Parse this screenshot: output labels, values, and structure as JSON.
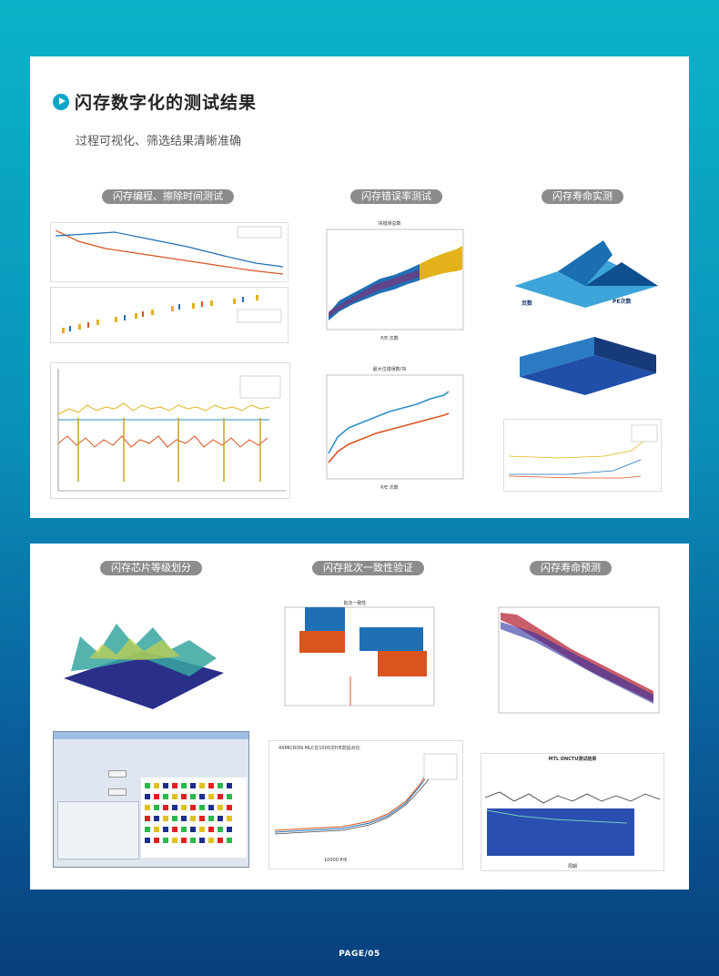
{
  "header": {
    "title": "闪存数字化的测试结果",
    "subtitle": "过程可视化、筛选结果清晰准确"
  },
  "section1": {
    "labels": [
      "闪存编程、擦除时间测试",
      "闪存错误率测试",
      "闪存寿命实测"
    ]
  },
  "section2": {
    "labels": [
      "闪存芯片等级划分",
      "闪存批次一致性验证",
      "闪存寿命预测"
    ]
  },
  "figures": {
    "error_rate_title": "块错误总数",
    "error_rate_xlabel": "P/E 次数",
    "max_error_title": "最大位错误数/块",
    "max_error_xlabel": "P/E 次数",
    "life_3d_labels": [
      "页数",
      "PE次数"
    ],
    "lot_title": "批次一致性",
    "vlc_title": "4XMICRON MLC在1000次P/E前后对比",
    "vlc_xlabel": "10000 P/E",
    "ldpc_title": "MTL DNCTU测试结果",
    "ldpc_xlabel": "周期"
  },
  "colors": {
    "accent": "#0aa6c6",
    "pill": "#8c8c8c",
    "blue": "#1f6fb5",
    "orange": "#d9541e",
    "gold": "#e3b21a"
  },
  "footer": {
    "page": "PAGE/05"
  }
}
